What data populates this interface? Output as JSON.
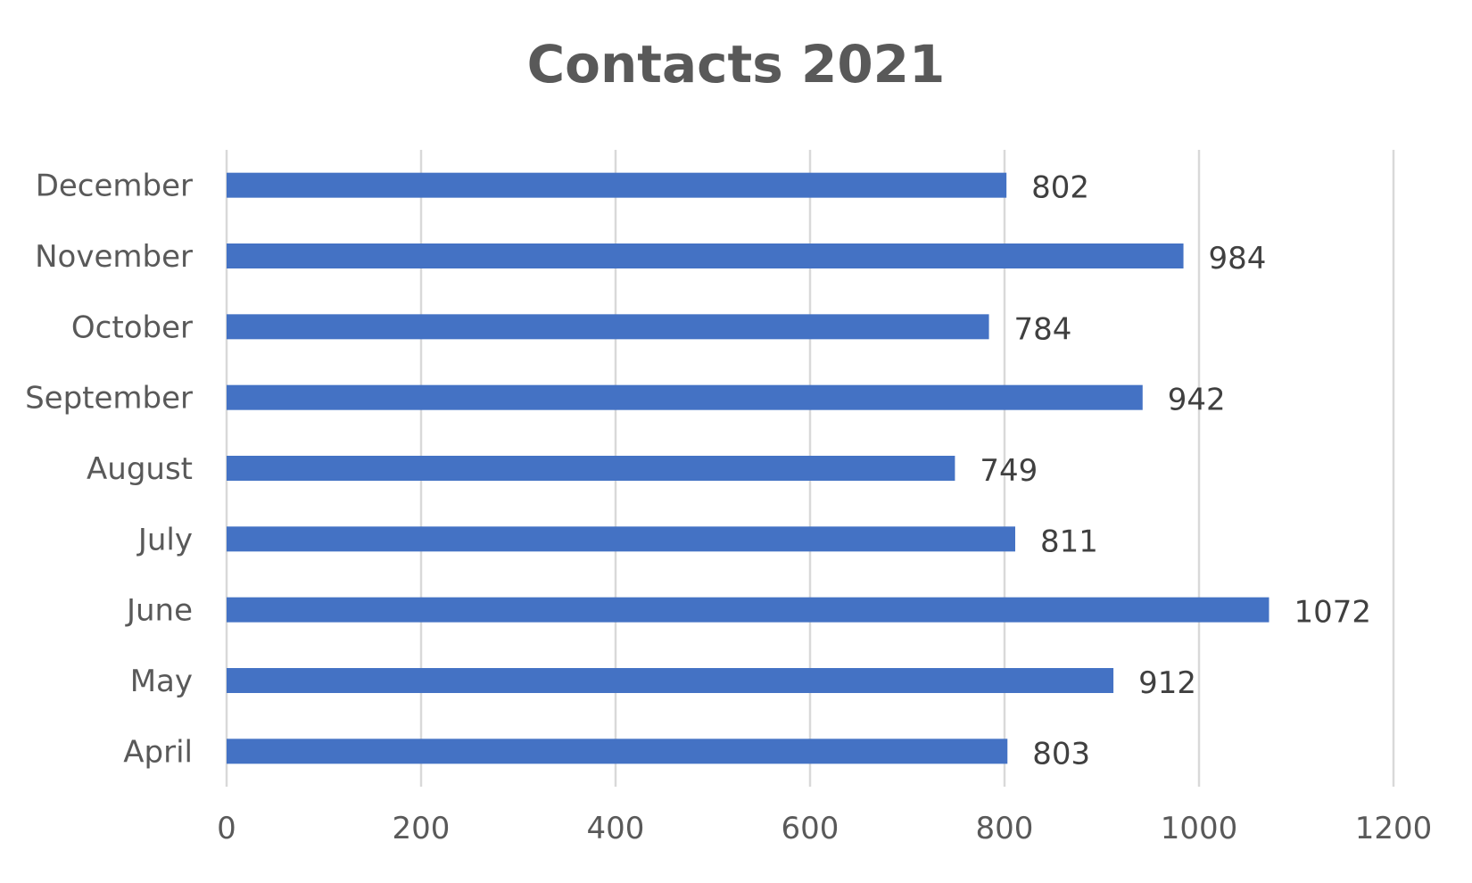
{
  "chart_data": {
    "type": "bar",
    "orientation": "horizontal",
    "title": "Contacts 2021",
    "xlabel": "",
    "ylabel": "",
    "categories": [
      "April",
      "May",
      "June",
      "July",
      "August",
      "September",
      "October",
      "November",
      "December"
    ],
    "values": [
      803,
      912,
      1072,
      811,
      749,
      942,
      784,
      984,
      802
    ],
    "xlim": [
      0,
      1200
    ],
    "x_ticks": [
      0,
      200,
      400,
      600,
      800,
      1000,
      1200
    ],
    "grid": true,
    "legend": "none",
    "data_labels": true,
    "bar_color": "#4472C4",
    "grid_color": "#D9D9D9"
  }
}
